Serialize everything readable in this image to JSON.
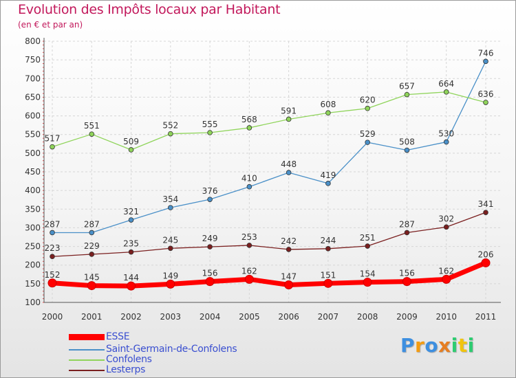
{
  "title": "Evolution des Impôts locaux par Habitant",
  "subtitle": "(en € et par an)",
  "logo": {
    "text": "Proxiti",
    "letters": [
      {
        "ch": "P",
        "color": "#3d8fe0"
      },
      {
        "ch": "r",
        "color": "#f39c12"
      },
      {
        "ch": "o",
        "color": "#3d8fe0"
      },
      {
        "ch": "x",
        "color": "#e67e22"
      },
      {
        "ch": "i",
        "color": "#2ecc71"
      },
      {
        "ch": "t",
        "color": "#f1c40f"
      },
      {
        "ch": "i",
        "color": "#2ecc71"
      }
    ]
  },
  "chart_data": {
    "type": "line",
    "title": "Evolution des Impôts locaux par Habitant",
    "subtitle": "(en € et par an)",
    "categories": [
      "2000",
      "2001",
      "2002",
      "2003",
      "2004",
      "2005",
      "2006",
      "2007",
      "2008",
      "2009",
      "2010",
      "2011"
    ],
    "ylim": [
      100,
      800
    ],
    "yticks": [
      100,
      150,
      200,
      250,
      300,
      350,
      400,
      450,
      500,
      550,
      600,
      650,
      700,
      750,
      800
    ],
    "grid": true,
    "legend_position": "bottom-left",
    "series": [
      {
        "name": "ESSE",
        "color": "#ff0000",
        "thick": true,
        "values": [
          152,
          145,
          144,
          149,
          156,
          162,
          147,
          151,
          154,
          156,
          162,
          206
        ]
      },
      {
        "name": "Saint-Germain-de-Confolens",
        "color": "#4a90c8",
        "thick": false,
        "values": [
          287,
          287,
          321,
          354,
          376,
          410,
          448,
          419,
          529,
          508,
          530,
          746
        ]
      },
      {
        "name": "Confolens",
        "color": "#8fd45a",
        "thick": false,
        "values": [
          517,
          551,
          509,
          552,
          555,
          568,
          591,
          608,
          620,
          657,
          664,
          636
        ]
      },
      {
        "name": "Lesterps",
        "color": "#7a1f1f",
        "thick": false,
        "values": [
          223,
          229,
          235,
          245,
          249,
          253,
          242,
          244,
          251,
          287,
          302,
          341
        ]
      }
    ]
  }
}
